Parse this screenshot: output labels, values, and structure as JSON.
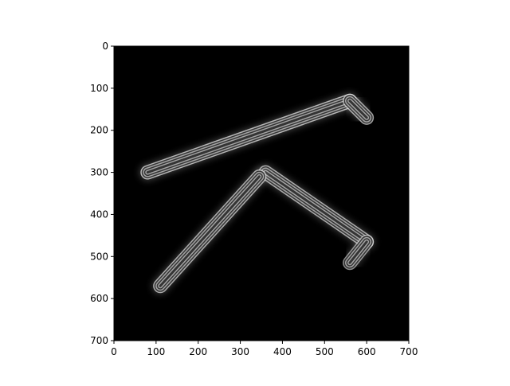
{
  "chart_data": {
    "type": "heatmap",
    "title": "",
    "xlabel": "",
    "ylabel": "",
    "xlim": [
      0,
      700
    ],
    "ylim": [
      700,
      0
    ],
    "x_ticks": [
      "0",
      "100",
      "200",
      "300",
      "400",
      "500",
      "600",
      "700"
    ],
    "y_ticks": [
      "0",
      "100",
      "200",
      "300",
      "400",
      "500",
      "600",
      "700"
    ],
    "colormap": "gray",
    "background_color": "#000000",
    "image_content": "grayscale reconstructed image of a T-shaped stroke with ringing artifacts",
    "strokes": [
      {
        "from": [
          80,
          300
        ],
        "to": [
          560,
          130
        ],
        "intensity": 0.75
      },
      {
        "from": [
          560,
          130
        ],
        "to": [
          600,
          170
        ],
        "intensity": 0.7
      },
      {
        "from": [
          360,
          300
        ],
        "to": [
          600,
          465
        ],
        "intensity": 0.7
      },
      {
        "from": [
          345,
          310
        ],
        "to": [
          110,
          570
        ],
        "intensity": 0.7
      },
      {
        "from": [
          560,
          515
        ],
        "to": [
          600,
          465
        ],
        "intensity": 0.6
      }
    ]
  }
}
